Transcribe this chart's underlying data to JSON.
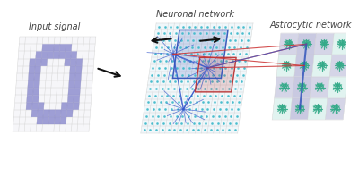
{
  "panel_titles": [
    "Input signal",
    "Neuronal network",
    "Astrocytic network"
  ],
  "bg_color": "#ffffff",
  "grid_color": "#cccccc",
  "grid_color2": "#bbbbbb",
  "pixel_color": "#8888cc",
  "pixel_color_edge": "#9999cc",
  "neuron_dot_color": "#44bbcc",
  "astro_color": "#33aa88",
  "blue_rect_color": "#3355bb",
  "red_rect_color": "#bb3333",
  "arrow_color": "#111111",
  "connection_blue": "#3355cc",
  "connection_red": "#cc3333",
  "panel1_bg": "#f4f4f8",
  "panel2_bg": "#eaf5f8",
  "panel3_bg": "#f0faf8",
  "astro_purple_bg": "#c8c8e0",
  "astro_teal_bg": "#d8f0ec",
  "astro_col_hi": "#b8b8d8",
  "figsize": [
    4.0,
    1.98
  ],
  "dpi": 100,
  "digit_zero": [
    [
      0,
      0,
      0,
      0,
      0,
      0,
      0,
      0,
      0,
      0,
      0,
      0,
      0
    ],
    [
      0,
      0,
      0,
      0,
      1,
      1,
      1,
      1,
      1,
      0,
      0,
      0,
      0
    ],
    [
      0,
      0,
      0,
      1,
      1,
      1,
      1,
      1,
      1,
      1,
      0,
      0,
      0
    ],
    [
      0,
      0,
      1,
      1,
      1,
      0,
      0,
      0,
      1,
      1,
      1,
      0,
      0
    ],
    [
      0,
      0,
      1,
      1,
      0,
      0,
      0,
      0,
      0,
      1,
      1,
      0,
      0
    ],
    [
      0,
      0,
      1,
      1,
      0,
      0,
      0,
      0,
      0,
      1,
      1,
      0,
      0
    ],
    [
      0,
      0,
      1,
      1,
      0,
      0,
      0,
      0,
      0,
      1,
      1,
      0,
      0
    ],
    [
      0,
      0,
      1,
      1,
      0,
      0,
      0,
      0,
      0,
      1,
      1,
      0,
      0
    ],
    [
      0,
      0,
      1,
      1,
      0,
      0,
      0,
      0,
      0,
      1,
      1,
      0,
      0
    ],
    [
      0,
      0,
      1,
      1,
      1,
      0,
      0,
      0,
      1,
      1,
      1,
      0,
      0
    ],
    [
      0,
      0,
      0,
      1,
      1,
      1,
      1,
      1,
      1,
      1,
      0,
      0,
      0
    ],
    [
      0,
      0,
      0,
      0,
      1,
      1,
      1,
      1,
      1,
      0,
      0,
      0,
      0
    ],
    [
      0,
      0,
      0,
      0,
      0,
      0,
      0,
      0,
      0,
      0,
      0,
      0,
      0
    ]
  ]
}
